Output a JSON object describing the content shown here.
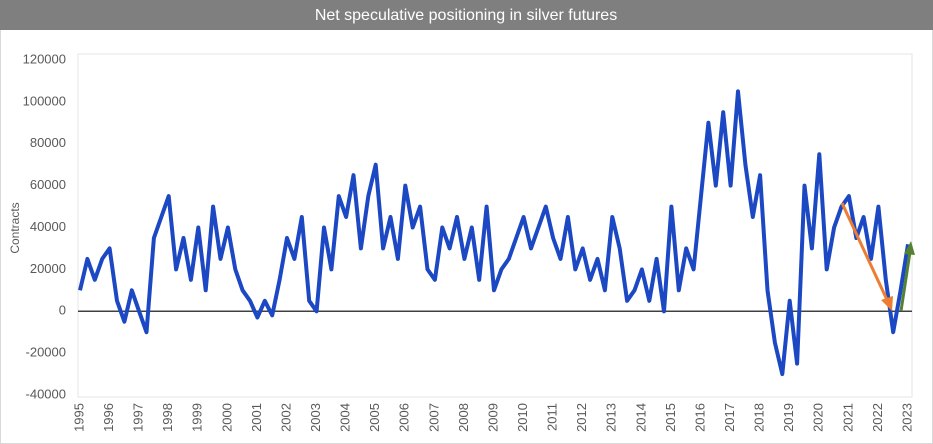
{
  "chart_data": {
    "type": "line",
    "title": "Net speculative positioning in silver futures",
    "y_label": "Contracts",
    "x": [
      1995,
      1995.25,
      1995.5,
      1995.75,
      1996,
      1996.25,
      1996.5,
      1996.75,
      1997,
      1997.25,
      1997.5,
      1997.75,
      1998,
      1998.25,
      1998.5,
      1998.75,
      1999,
      1999.25,
      1999.5,
      1999.75,
      2000,
      2000.25,
      2000.5,
      2000.75,
      2001,
      2001.25,
      2001.5,
      2001.75,
      2002,
      2002.25,
      2002.5,
      2002.75,
      2003,
      2003.25,
      2003.5,
      2003.75,
      2004,
      2004.25,
      2004.5,
      2004.75,
      2005,
      2005.25,
      2005.5,
      2005.75,
      2006,
      2006.25,
      2006.5,
      2006.75,
      2007,
      2007.25,
      2007.5,
      2007.75,
      2008,
      2008.25,
      2008.5,
      2008.75,
      2009,
      2009.25,
      2009.5,
      2009.75,
      2010,
      2010.25,
      2010.5,
      2010.75,
      2011,
      2011.25,
      2011.5,
      2011.75,
      2012,
      2012.25,
      2012.5,
      2012.75,
      2013,
      2013.25,
      2013.5,
      2013.75,
      2014,
      2014.25,
      2014.5,
      2014.75,
      2015,
      2015.25,
      2015.5,
      2015.75,
      2016,
      2016.25,
      2016.5,
      2016.75,
      2017,
      2017.25,
      2017.5,
      2017.75,
      2018,
      2018.25,
      2018.5,
      2018.75,
      2019,
      2019.25,
      2019.5,
      2019.75,
      2020,
      2020.25,
      2020.5,
      2020.75,
      2021,
      2021.25,
      2021.5,
      2021.75,
      2022,
      2022.25,
      2022.5,
      2022.75,
      2023
    ],
    "series": [
      {
        "name": "Net speculative positioning",
        "color": "#1c48c4",
        "values": [
          10000,
          25000,
          15000,
          25000,
          30000,
          5000,
          -5000,
          10000,
          0,
          -10000,
          35000,
          45000,
          55000,
          20000,
          35000,
          15000,
          40000,
          10000,
          50000,
          25000,
          40000,
          20000,
          10000,
          5000,
          -3000,
          5000,
          -2000,
          15000,
          35000,
          25000,
          45000,
          5000,
          0,
          40000,
          20000,
          55000,
          45000,
          65000,
          30000,
          55000,
          70000,
          30000,
          45000,
          25000,
          60000,
          40000,
          50000,
          20000,
          15000,
          40000,
          30000,
          45000,
          25000,
          40000,
          15000,
          50000,
          10000,
          20000,
          25000,
          35000,
          45000,
          30000,
          40000,
          50000,
          35000,
          25000,
          45000,
          20000,
          30000,
          15000,
          25000,
          10000,
          45000,
          30000,
          5000,
          10000,
          20000,
          5000,
          25000,
          0,
          50000,
          10000,
          30000,
          20000,
          55000,
          90000,
          60000,
          95000,
          60000,
          105000,
          70000,
          45000,
          65000,
          10000,
          -15000,
          -30000,
          5000,
          -25000,
          60000,
          30000,
          75000,
          20000,
          40000,
          50000,
          55000,
          35000,
          45000,
          25000,
          50000,
          15000,
          -10000,
          10000,
          32000
        ]
      }
    ],
    "xlim": [
      1995,
      2023
    ],
    "xticks": [
      1995,
      1996,
      1997,
      1998,
      1999,
      2000,
      2001,
      2002,
      2003,
      2004,
      2005,
      2006,
      2007,
      2008,
      2009,
      2010,
      2011,
      2012,
      2013,
      2014,
      2015,
      2016,
      2017,
      2018,
      2019,
      2020,
      2021,
      2022,
      2023
    ],
    "ylim": [
      -40000,
      120000
    ],
    "yticks": [
      -40000,
      -20000,
      0,
      20000,
      40000,
      60000,
      80000,
      100000,
      120000
    ]
  }
}
